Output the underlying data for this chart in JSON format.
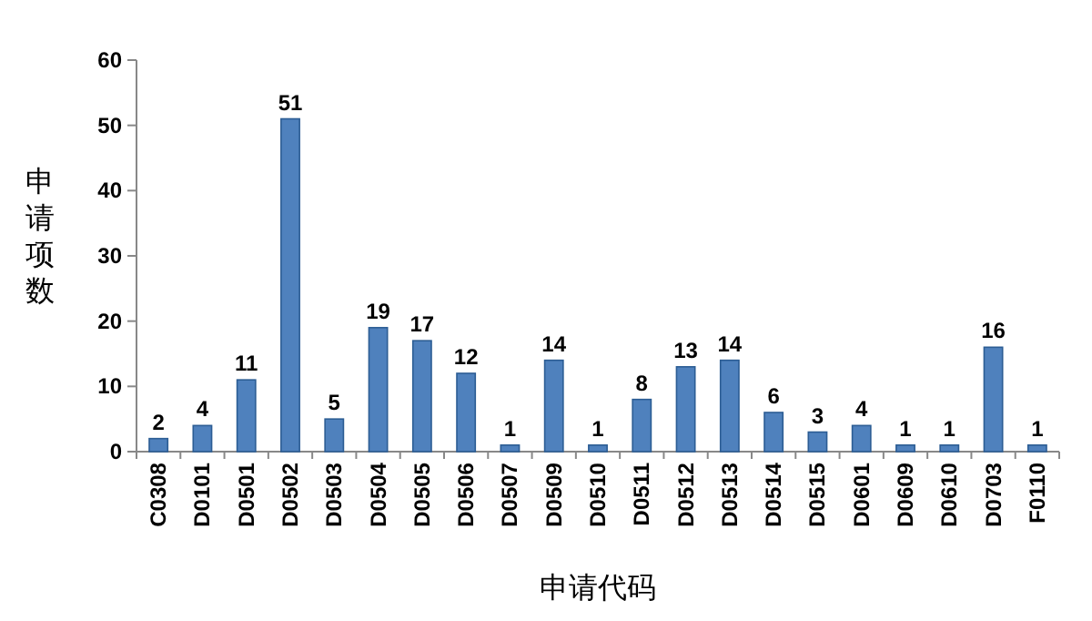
{
  "chart_data": {
    "type": "bar",
    "xlabel": "申请代码",
    "ylabel": "申请项数",
    "categories": [
      "C0308",
      "D0101",
      "D0501",
      "D0502",
      "D0503",
      "D0504",
      "D0505",
      "D0506",
      "D0507",
      "D0509",
      "D0510",
      "D0511",
      "D0512",
      "D0513",
      "D0514",
      "D0515",
      "D0601",
      "D0609",
      "D0610",
      "D0703",
      "F0110"
    ],
    "values": [
      2,
      4,
      11,
      51,
      5,
      19,
      17,
      12,
      1,
      14,
      1,
      8,
      13,
      14,
      6,
      3,
      4,
      1,
      1,
      16,
      1
    ],
    "color": "#4f81bd",
    "ylim": [
      0,
      60
    ],
    "yticks": [
      0,
      10,
      20,
      30,
      40,
      50,
      60
    ],
    "data_labels": true,
    "grid": false
  }
}
